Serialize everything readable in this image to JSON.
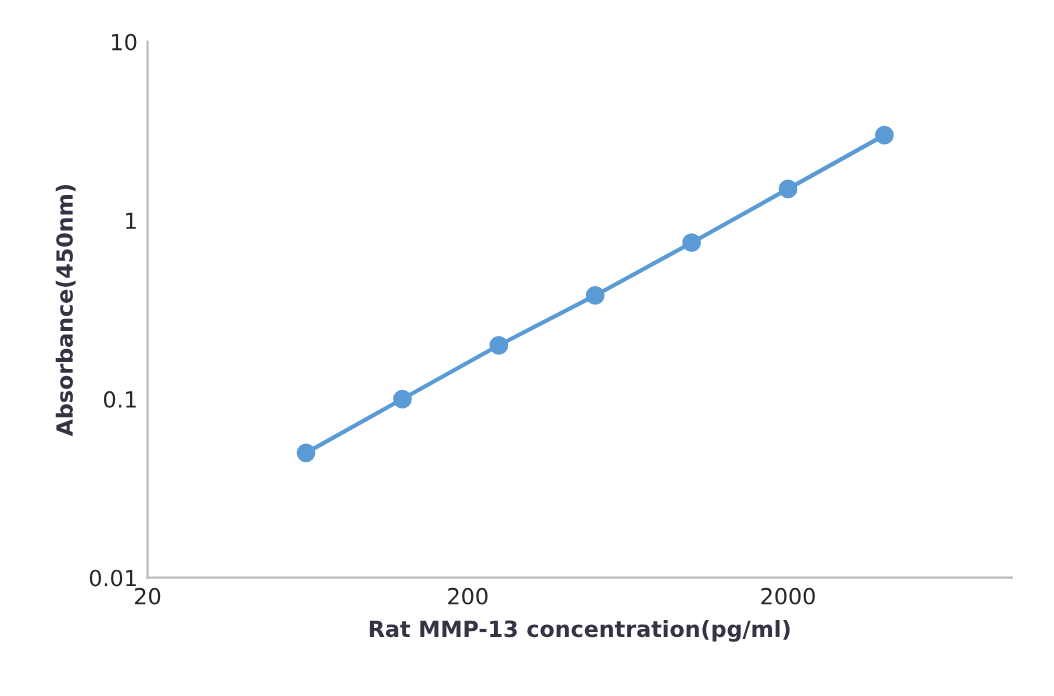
{
  "chart_data": {
    "type": "line",
    "xlabel": "Rat MMP-13 concentration(pg/ml)",
    "ylabel": "Absorbance(450nm)",
    "x": [
      62.5,
      125,
      250,
      500,
      1000,
      2000,
      4000
    ],
    "series": [
      {
        "color": "#5b9bd5",
        "values": [
          0.05,
          0.1,
          0.2,
          0.38,
          0.75,
          1.5,
          3.0
        ]
      }
    ],
    "log": "xy",
    "xlim": [
      20,
      10000
    ],
    "ylim": [
      0.01,
      10
    ],
    "xticks": [
      20,
      200,
      2000
    ],
    "yticks": [
      0.01,
      0.1,
      1,
      10
    ],
    "marker": "circle",
    "line_style": "solid",
    "grid": false
  }
}
